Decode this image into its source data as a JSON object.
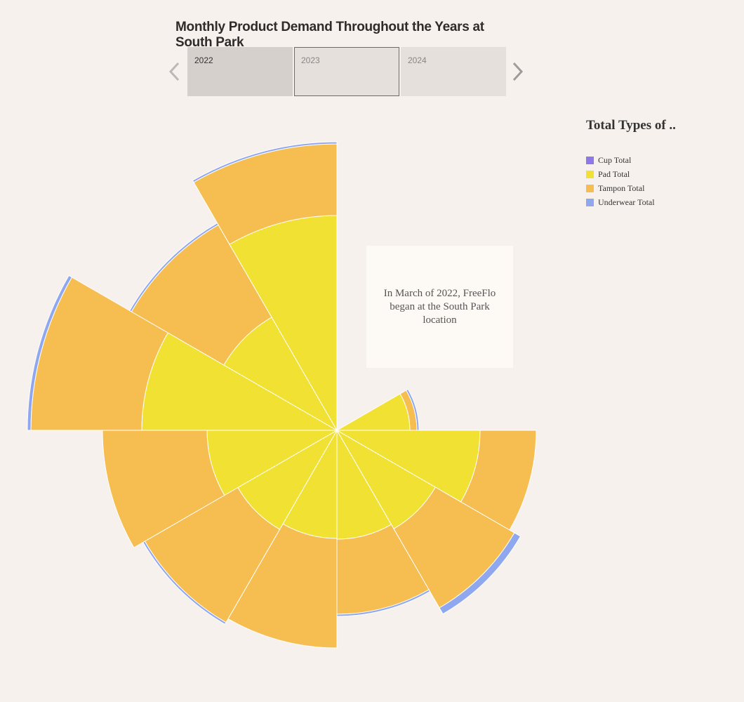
{
  "page": {
    "title": "Monthly Product Demand Throughout the Years at South Park"
  },
  "year_selector": {
    "prev_icon": "chevron-left-icon",
    "next_icon": "chevron-right-icon",
    "tabs": [
      {
        "label": "2022",
        "state": "selected"
      },
      {
        "label": "2023",
        "state": "hover"
      },
      {
        "label": "2024",
        "state": "normal"
      }
    ]
  },
  "annotation": {
    "text": "In March of 2022, FreeFlo began at the South Park location"
  },
  "legend": {
    "title": "Total Types of ..",
    "items": [
      {
        "label": "Cup Total",
        "color": "#8c78e6"
      },
      {
        "label": "Pad Total",
        "color": "#f1e133"
      },
      {
        "label": "Tampon Total",
        "color": "#f6bd50"
      },
      {
        "label": "Underwear Total",
        "color": "#8fa7ee"
      }
    ]
  },
  "chart_data": {
    "type": "radial-stacked-bar",
    "year": "2022",
    "start_angle_deg": 0,
    "direction": "clockwise",
    "segments": 12,
    "occupied_segments": [
      2,
      3,
      4,
      5,
      6,
      7,
      8,
      9,
      10,
      11
    ],
    "series": [
      {
        "name": "Cup Total",
        "color": "#8c78e6",
        "values": [
          0,
          0,
          0,
          0,
          0,
          0,
          0,
          0,
          0,
          0
        ]
      },
      {
        "name": "Pad Total",
        "color": "#f1e133",
        "values": [
          104,
          204,
          162,
          155,
          154,
          163,
          185,
          278,
          186,
          306
        ]
      },
      {
        "name": "Tampon Total",
        "color": "#f6bd50",
        "values": [
          10,
          80,
          130,
          107,
          156,
          153,
          149,
          158,
          152,
          102
        ]
      },
      {
        "name": "Underwear Total",
        "color": "#8fa7ee",
        "values": [
          3,
          0,
          10,
          3,
          0,
          3,
          0,
          5,
          3,
          3
        ]
      }
    ]
  }
}
